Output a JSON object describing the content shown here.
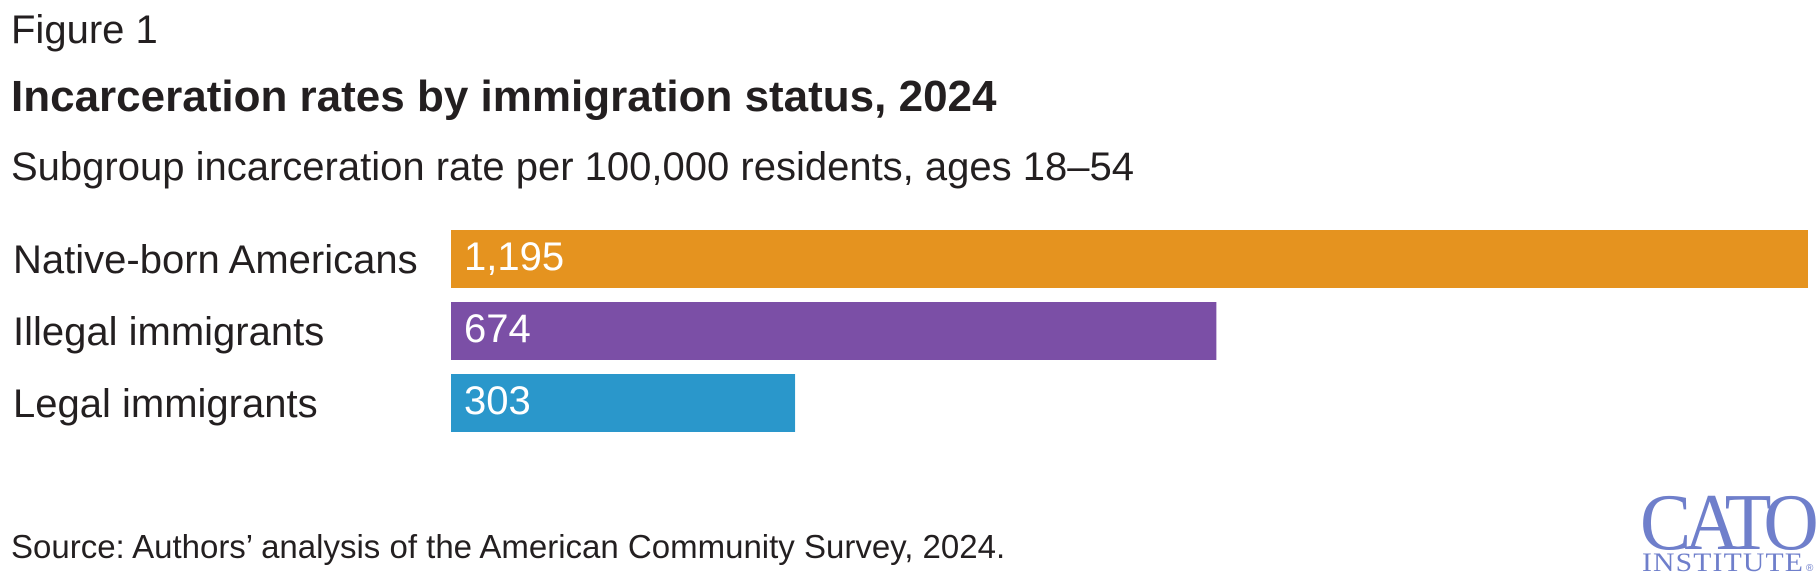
{
  "figure_label": "Figure 1",
  "title": "Incarceration rates by immigration status, 2024",
  "subtitle": "Subgroup incarceration rate per 100,000 residents, ages 18–54",
  "source": "Source: Authors’ analysis of the American Community Survey, 2024.",
  "logo": {
    "text": "CATO",
    "subtext": "INSTITUTE",
    "mark": "®",
    "color": "#6f7fcb"
  },
  "chart_data": {
    "type": "bar",
    "orientation": "horizontal",
    "title": "Incarceration rates by immigration status, 2024",
    "subtitle": "Subgroup incarceration rate per 100,000 residents, ages 18–54",
    "categories": [
      "Native-born Americans",
      "Illegal immigrants",
      "Legal immigrants"
    ],
    "values": [
      1195,
      674,
      303
    ],
    "value_labels": [
      "1,195",
      "674",
      "303"
    ],
    "colors": [
      "#e5931f",
      "#7b4fa6",
      "#2a97cb"
    ],
    "xlim": [
      0,
      1195
    ],
    "grid": false,
    "legend": "none"
  }
}
